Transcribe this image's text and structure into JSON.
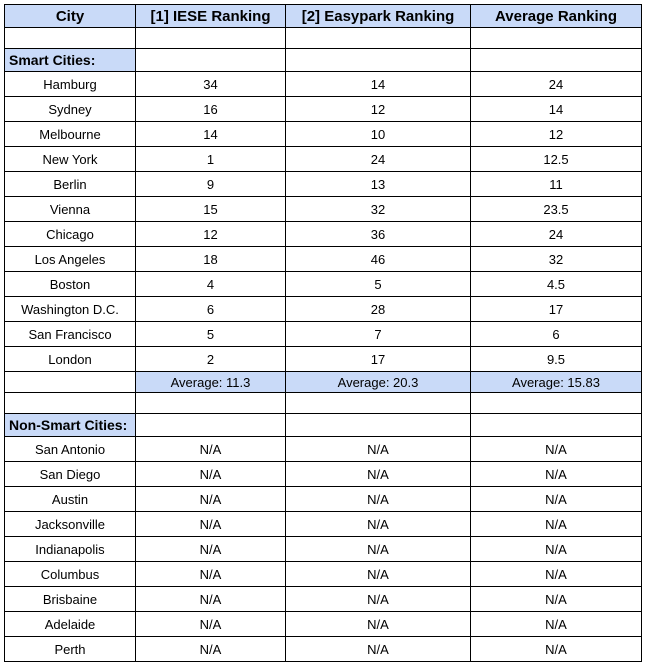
{
  "headers": [
    "City",
    "[1] IESE Ranking",
    "[2] Easypark Ranking",
    "Average Ranking"
  ],
  "smart_label": "Smart Cities:",
  "smart_rows": [
    {
      "city": "Hamburg",
      "iese": "34",
      "easypark": "14",
      "average": "24"
    },
    {
      "city": "Sydney",
      "iese": "16",
      "easypark": "12",
      "average": "14"
    },
    {
      "city": "Melbourne",
      "iese": "14",
      "easypark": "10",
      "average": "12"
    },
    {
      "city": "New York",
      "iese": "1",
      "easypark": "24",
      "average": "12.5"
    },
    {
      "city": "Berlin",
      "iese": "9",
      "easypark": "13",
      "average": "11"
    },
    {
      "city": "Vienna",
      "iese": "15",
      "easypark": "32",
      "average": "23.5"
    },
    {
      "city": "Chicago",
      "iese": "12",
      "easypark": "36",
      "average": "24"
    },
    {
      "city": "Los Angeles",
      "iese": "18",
      "easypark": "46",
      "average": "32"
    },
    {
      "city": "Boston",
      "iese": "4",
      "easypark": "5",
      "average": "4.5"
    },
    {
      "city": "Washington D.C.",
      "iese": "6",
      "easypark": "28",
      "average": "17"
    },
    {
      "city": "San Francisco",
      "iese": "5",
      "easypark": "7",
      "average": "6"
    },
    {
      "city": "London",
      "iese": "2",
      "easypark": "17",
      "average": "9.5"
    }
  ],
  "averages": {
    "iese": "Average: 11.3",
    "easypark": "Average: 20.3",
    "average": "Average: 15.83"
  },
  "nonsmart_label": "Non-Smart Cities:",
  "nonsmart_rows": [
    {
      "city": "San Antonio",
      "iese": "N/A",
      "easypark": "N/A",
      "average": "N/A"
    },
    {
      "city": "San Diego",
      "iese": "N/A",
      "easypark": "N/A",
      "average": "N/A"
    },
    {
      "city": "Austin",
      "iese": "N/A",
      "easypark": "N/A",
      "average": "N/A"
    },
    {
      "city": "Jacksonville",
      "iese": "N/A",
      "easypark": "N/A",
      "average": "N/A"
    },
    {
      "city": "Indianapolis",
      "iese": "N/A",
      "easypark": "N/A",
      "average": "N/A"
    },
    {
      "city": "Columbus",
      "iese": "N/A",
      "easypark": "N/A",
      "average": "N/A"
    },
    {
      "city": "Brisbaine",
      "iese": "N/A",
      "easypark": "N/A",
      "average": "N/A"
    },
    {
      "city": "Adelaide",
      "iese": "N/A",
      "easypark": "N/A",
      "average": "N/A"
    },
    {
      "city": "Perth",
      "iese": "N/A",
      "easypark": "N/A",
      "average": "N/A"
    }
  ]
}
